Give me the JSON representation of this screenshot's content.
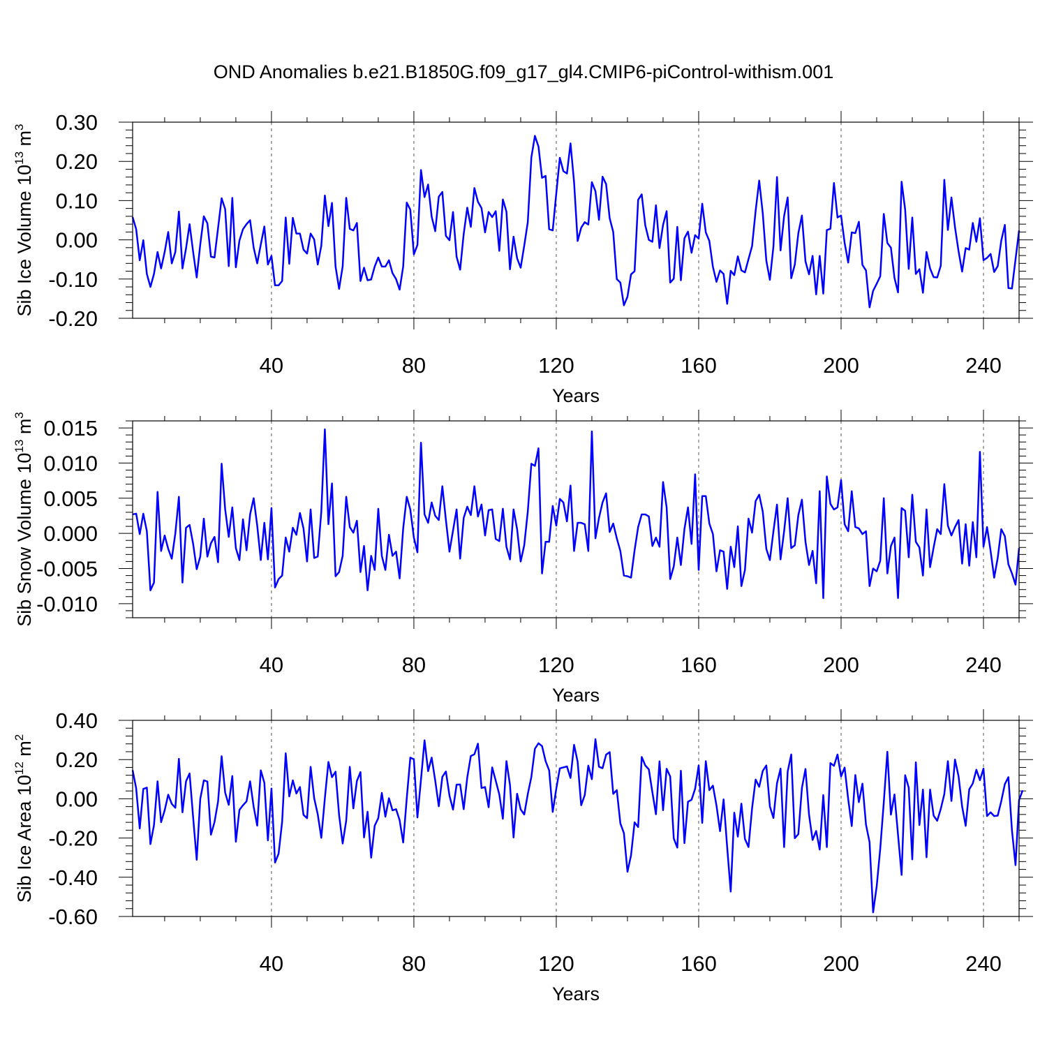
{
  "title": "OND Anomalies b.e21.B1850G.f09_g17_gl4.CMIP6-piControl-withism.001",
  "line_color": "#0000ff",
  "chart_data": [
    {
      "type": "line",
      "ylabel_main": "Sib Ice Volume 10",
      "ylabel_exp": "13",
      "ylabel_unit": " m",
      "ylabel_unit_exp": "3",
      "xlabel": "Years",
      "xlim": [
        1,
        250
      ],
      "ylim": [
        -0.2,
        0.3
      ],
      "yticks": [
        -0.2,
        -0.1,
        0.0,
        0.1,
        0.2,
        0.3
      ],
      "ytick_labels": [
        "-0.20",
        "-0.10",
        "0.00",
        "0.10",
        "0.20",
        "0.30"
      ],
      "xticks": [
        40,
        80,
        120,
        160,
        200,
        240
      ],
      "xtick_labels": [
        "40",
        "80",
        "120",
        "160",
        "200",
        "240"
      ],
      "grid_x": true,
      "series": [
        {
          "name": "Sib Ice Volume",
          "values": [
            0.058,
            0.027,
            -0.052,
            -0.001,
            -0.087,
            -0.12,
            -0.087,
            -0.031,
            -0.073,
            -0.031,
            0.02,
            -0.06,
            -0.031,
            0.072,
            -0.073,
            -0.022,
            0.04,
            -0.031,
            -0.096,
            -0.012,
            0.06,
            0.042,
            -0.043,
            -0.045,
            0.03,
            0.106,
            0.078,
            -0.067,
            0.107,
            -0.07,
            -0.002,
            0.027,
            0.04,
            0.05,
            -0.02,
            -0.06,
            -0.012,
            0.034,
            -0.063,
            -0.041,
            -0.116,
            -0.116,
            -0.105,
            0.057,
            -0.061,
            0.056,
            0.016,
            0.016,
            -0.025,
            -0.035,
            0.016,
            0.001,
            -0.063,
            -0.015,
            0.113,
            0.035,
            0.094,
            -0.068,
            -0.125,
            -0.068,
            0.107,
            0.028,
            0.024,
            0.043,
            -0.105,
            -0.071,
            -0.103,
            -0.101,
            -0.068,
            -0.045,
            -0.068,
            -0.068,
            -0.052,
            -0.085,
            -0.1,
            -0.127,
            -0.068,
            0.095,
            0.077,
            -0.037,
            -0.013,
            0.178,
            0.109,
            0.141,
            0.059,
            0.022,
            0.11,
            0.122,
            0.01,
            -0.001,
            0.071,
            -0.043,
            -0.076,
            0.015,
            0.082,
            0.033,
            0.132,
            0.097,
            0.081,
            0.019,
            0.071,
            0.058,
            0.073,
            -0.028,
            0.103,
            0.072,
            -0.075,
            0.008,
            -0.047,
            -0.071,
            -0.015,
            0.045,
            0.21,
            0.265,
            0.238,
            0.158,
            0.163,
            0.027,
            0.024,
            0.118,
            0.209,
            0.175,
            0.169,
            0.246,
            0.147,
            -0.003,
            0.031,
            0.045,
            0.039,
            0.147,
            0.124,
            0.051,
            0.161,
            0.142,
            0.055,
            0.02,
            -0.1,
            -0.109,
            -0.167,
            -0.145,
            -0.088,
            -0.08,
            0.102,
            0.116,
            0.037,
            0.0,
            -0.005,
            0.088,
            -0.021,
            0.038,
            0.073,
            -0.109,
            -0.099,
            0.033,
            -0.103,
            0.004,
            0.021,
            -0.033,
            0.012,
            0.003,
            0.092,
            0.019,
            -0.003,
            -0.069,
            -0.107,
            -0.078,
            -0.087,
            -0.163,
            -0.079,
            -0.09,
            -0.042,
            -0.078,
            -0.083,
            -0.049,
            -0.016,
            0.074,
            0.151,
            0.068,
            -0.053,
            -0.102,
            -0.017,
            0.16,
            -0.027,
            0.061,
            0.108,
            -0.098,
            -0.063,
            0.017,
            0.062,
            -0.055,
            -0.088,
            -0.041,
            -0.139,
            -0.041,
            -0.137,
            0.025,
            0.028,
            0.145,
            0.057,
            0.062,
            -0.008,
            -0.058,
            0.019,
            0.017,
            0.046,
            -0.064,
            -0.078,
            -0.172,
            -0.13,
            -0.112,
            -0.093,
            0.066,
            -0.008,
            -0.02,
            -0.097,
            -0.134,
            0.148,
            0.077,
            -0.074,
            0.057,
            -0.087,
            -0.075,
            -0.135,
            -0.031,
            -0.073,
            -0.095,
            -0.096,
            -0.066,
            0.153,
            0.025,
            0.108,
            0.032,
            -0.029,
            -0.081,
            -0.021,
            -0.025,
            0.043,
            -0.005,
            0.055,
            -0.052,
            -0.046,
            -0.036,
            -0.082,
            -0.067,
            -0.002,
            0.038,
            -0.123,
            -0.124,
            -0.05,
            0.024
          ]
        }
      ]
    },
    {
      "type": "line",
      "ylabel_main": "Sib Snow Volume 10",
      "ylabel_exp": "13",
      "ylabel_unit": " m",
      "ylabel_unit_exp": "3",
      "xlabel": "Years",
      "xlim": [
        1,
        250
      ],
      "ylim": [
        -0.012,
        0.016
      ],
      "yticks": [
        -0.01,
        -0.005,
        0.0,
        0.005,
        0.01,
        0.015
      ],
      "ytick_labels": [
        "-0.010",
        "-0.005",
        "0.000",
        "0.005",
        "0.010",
        "0.015"
      ],
      "xticks": [
        40,
        80,
        120,
        160,
        200,
        240
      ],
      "xtick_labels": [
        "40",
        "80",
        "120",
        "160",
        "200",
        "240"
      ],
      "grid_x": true,
      "series": [
        {
          "name": "Sib Snow Volume",
          "values": [
            0.0027,
            0.0028,
            -0.0001,
            0.0028,
            0.0003,
            -0.0081,
            -0.007,
            0.0059,
            -0.0025,
            -0.0003,
            -0.0022,
            -0.0036,
            0.0,
            0.0052,
            -0.007,
            0.0008,
            0.0012,
            -0.0015,
            -0.0051,
            -0.0033,
            0.0021,
            -0.0033,
            -0.0014,
            -0.0005,
            -0.0041,
            0.0099,
            0.0034,
            -0.0005,
            0.0037,
            -0.0021,
            -0.0038,
            0.002,
            -0.0024,
            0.0027,
            0.005,
            0.0011,
            -0.0038,
            0.0015,
            -0.0037,
            0.0036,
            -0.0077,
            -0.0065,
            -0.006,
            -0.0006,
            -0.0026,
            0.0008,
            -0.0002,
            0.0029,
            0.0007,
            -0.004,
            0.0034,
            -0.0035,
            -0.0033,
            0.0031,
            0.0148,
            0.0013,
            0.0071,
            -0.0061,
            -0.0055,
            -0.0032,
            0.0052,
            0.0009,
            0.0001,
            0.0018,
            -0.0055,
            -0.0018,
            -0.0081,
            -0.0032,
            -0.0052,
            0.0035,
            -0.0032,
            -0.0052,
            -0.0002,
            -0.0032,
            -0.0026,
            -0.0064,
            0.0007,
            0.0052,
            0.0034,
            -0.0006,
            -0.0027,
            0.0129,
            0.0027,
            0.0015,
            0.0044,
            0.0025,
            0.0019,
            0.0067,
            0.0019,
            -0.0026,
            0.0004,
            0.0034,
            -0.0036,
            0.0022,
            0.0038,
            0.0026,
            0.0067,
            0.0024,
            0.0041,
            -0.0003,
            0.0033,
            0.0034,
            -0.0008,
            -0.0011,
            0.0035,
            -0.0019,
            -0.0037,
            0.0034,
            0.0006,
            -0.004,
            -0.0017,
            0.0031,
            0.0099,
            0.0096,
            0.0121,
            -0.0057,
            -0.0012,
            -0.0012,
            0.0039,
            0.0011,
            0.0049,
            0.0044,
            0.0017,
            0.0068,
            -0.0025,
            0.0015,
            0.0015,
            0.0013,
            -0.0025,
            0.0145,
            -0.0007,
            0.0022,
            0.0044,
            0.0057,
            0.0002,
            0.0014,
            -0.0007,
            -0.0025,
            -0.006,
            -0.0061,
            -0.0063,
            -0.0024,
            0.0009,
            0.0027,
            0.0027,
            0.0024,
            -0.0018,
            -0.0006,
            -0.0019,
            0.0073,
            0.0037,
            -0.0065,
            -0.0047,
            -0.0006,
            -0.0045,
            0.0006,
            0.0037,
            -0.0015,
            0.0084,
            -0.0052,
            0.0053,
            0.0053,
            0.0014,
            -0.0001,
            -0.0054,
            -0.0024,
            -0.0026,
            -0.0079,
            -0.0019,
            -0.0048,
            0.001,
            -0.0075,
            -0.0052,
            0.0021,
            0.0001,
            0.0046,
            0.0055,
            0.0031,
            -0.0022,
            -0.0038,
            0.0003,
            0.0041,
            -0.0037,
            0.0003,
            0.005,
            -0.0021,
            -0.0017,
            0.0026,
            0.0048,
            -0.0012,
            -0.0045,
            -0.0025,
            -0.0071,
            0.006,
            -0.0092,
            0.0081,
            0.0042,
            0.0034,
            0.0037,
            0.0076,
            0.0013,
            0.0003,
            0.006,
            0.0009,
            0.0007,
            -0.0001,
            0.0003,
            -0.0075,
            -0.005,
            -0.0054,
            -0.0039,
            0.005,
            -0.0057,
            -0.0018,
            -0.0006,
            -0.0092,
            0.0036,
            0.0032,
            -0.0034,
            0.0055,
            -0.0012,
            -0.002,
            -0.006,
            0.0034,
            -0.0048,
            -0.002,
            0.0006,
            -0.0001,
            0.007,
            0.0011,
            -0.0003,
            0.0009,
            0.0019,
            -0.0043,
            0.0013,
            -0.0046,
            0.0016,
            -0.0034,
            0.0116,
            -0.0019,
            0.0009,
            -0.0025,
            -0.0063,
            -0.0035,
            0.0006,
            -0.0004,
            -0.0044,
            -0.0057,
            -0.0073,
            -0.0021
          ]
        }
      ]
    },
    {
      "type": "line",
      "ylabel_main": "Sib Ice Area 10",
      "ylabel_exp": "12",
      "ylabel_unit": " m",
      "ylabel_unit_exp": "2",
      "xlabel": "Years",
      "xlim": [
        1,
        250
      ],
      "ylim": [
        -0.6,
        0.4
      ],
      "yticks": [
        -0.6,
        -0.4,
        -0.2,
        0.0,
        0.2,
        0.4
      ],
      "ytick_labels": [
        "-0.60",
        "-0.40",
        "-0.20",
        "0.00",
        "0.20",
        "0.40"
      ],
      "xticks": [
        40,
        80,
        120,
        160,
        200,
        240
      ],
      "xtick_labels": [
        "40",
        "80",
        "120",
        "160",
        "200",
        "240"
      ],
      "grid_x": true,
      "series": [
        {
          "name": "Sib Ice Area",
          "values": [
            0.146,
            0.053,
            -0.151,
            0.05,
            0.057,
            -0.231,
            -0.134,
            0.089,
            -0.119,
            -0.059,
            0.021,
            -0.026,
            -0.046,
            0.204,
            -0.069,
            0.089,
            0.129,
            -0.095,
            -0.311,
            -0.001,
            0.094,
            0.088,
            -0.183,
            -0.119,
            -0.014,
            0.217,
            0.031,
            -0.031,
            0.116,
            -0.219,
            -0.057,
            -0.033,
            -0.013,
            0.089,
            -0.041,
            -0.137,
            0.145,
            0.082,
            -0.212,
            0.052,
            -0.325,
            -0.28,
            -0.117,
            0.232,
            0.012,
            0.094,
            0.027,
            0.06,
            -0.082,
            -0.099,
            0.163,
            0.003,
            -0.079,
            -0.199,
            0.003,
            0.188,
            0.11,
            0.138,
            -0.083,
            -0.228,
            -0.111,
            0.163,
            -0.049,
            0.091,
            0.136,
            -0.197,
            -0.066,
            -0.3,
            -0.137,
            -0.099,
            0.03,
            -0.091,
            0.003,
            -0.059,
            -0.053,
            -0.109,
            -0.223,
            0.002,
            0.21,
            0.201,
            -0.095,
            0.098,
            0.298,
            0.141,
            0.21,
            0.093,
            -0.038,
            0.112,
            0.139,
            0.016,
            -0.055,
            0.072,
            0.073,
            -0.053,
            0.109,
            0.218,
            0.227,
            0.281,
            0.055,
            0.06,
            -0.043,
            0.16,
            0.092,
            0.022,
            -0.102,
            0.192,
            0.07,
            -0.197,
            0.026,
            -0.054,
            -0.08,
            0.024,
            0.111,
            0.255,
            0.283,
            0.269,
            0.192,
            0.145,
            -0.067,
            0.051,
            0.155,
            0.16,
            0.165,
            0.106,
            0.275,
            0.189,
            -0.033,
            0.019,
            0.169,
            0.1,
            0.304,
            0.163,
            0.156,
            0.225,
            0.238,
            0.025,
            0.044,
            -0.125,
            -0.175,
            -0.372,
            -0.288,
            -0.12,
            -0.144,
            0.213,
            0.17,
            0.15,
            0.033,
            -0.079,
            0.191,
            -0.058,
            0.153,
            0.114,
            -0.202,
            -0.249,
            0.143,
            -0.226,
            -0.015,
            -0.005,
            0.051,
            0.17,
            -0.123,
            0.192,
            0.044,
            0.067,
            -0.034,
            -0.165,
            -0.003,
            -0.246,
            -0.473,
            -0.071,
            -0.193,
            -0.025,
            -0.205,
            -0.246,
            -0.049,
            0.098,
            0.061,
            0.142,
            0.17,
            -0.039,
            -0.098,
            0.079,
            0.154,
            -0.246,
            0.139,
            0.226,
            -0.201,
            -0.18,
            0.055,
            0.152,
            -0.081,
            -0.21,
            -0.164,
            -0.259,
            0.019,
            -0.246,
            0.182,
            0.168,
            0.226,
            0.114,
            0.159,
            -0.002,
            -0.139,
            0.121,
            -0.017,
            0.077,
            -0.132,
            -0.221,
            -0.579,
            -0.447,
            -0.255,
            -0.017,
            0.24,
            -0.081,
            0.022,
            -0.184,
            -0.388,
            0.12,
            0.057,
            -0.309,
            0.186,
            -0.134,
            0.047,
            -0.298,
            0.047,
            -0.086,
            -0.112,
            -0.052,
            0.024,
            0.192,
            -0.011,
            0.2,
            0.115,
            -0.039,
            -0.138,
            0.048,
            0.078,
            0.148,
            0.095,
            0.154,
            -0.088,
            -0.069,
            -0.088,
            -0.086,
            -0.012,
            0.075,
            0.11,
            -0.161,
            -0.338,
            -0.006,
            0.043
          ]
        }
      ]
    }
  ]
}
